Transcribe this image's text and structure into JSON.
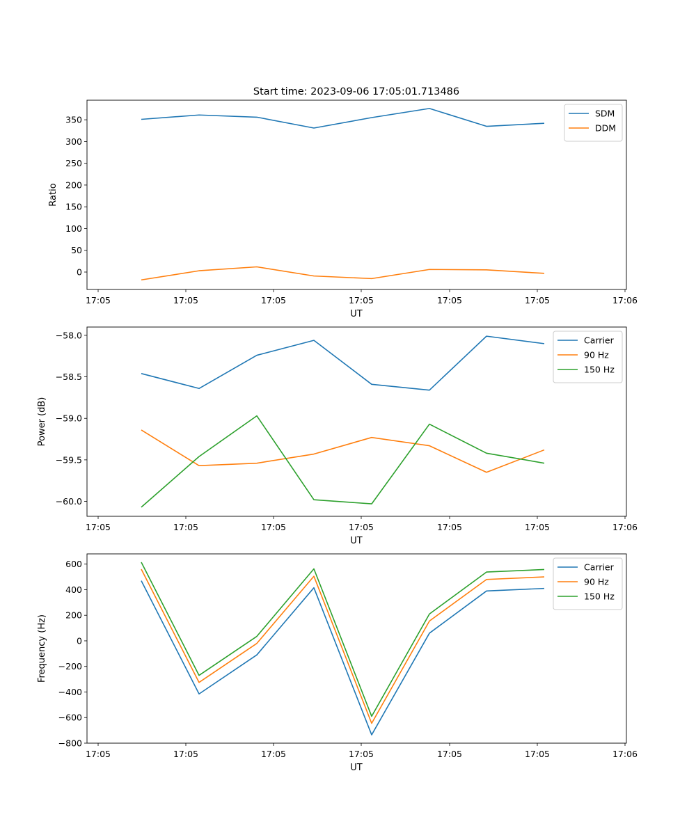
{
  "figure": {
    "title": "Start time: 2023-09-06 17:05:01.713486"
  },
  "colors": {
    "blue": "#1f77b4",
    "orange": "#ff7f0e",
    "green": "#2ca02c"
  },
  "chart_data": [
    {
      "type": "line",
      "xlabel": "UT",
      "ylabel": "Ratio",
      "x_tick_labels": [
        "17:05",
        "17:05",
        "17:05",
        "17:05",
        "17:05",
        "17:05",
        "17:06"
      ],
      "x": [
        1,
        2,
        3,
        4,
        5,
        6,
        7,
        8
      ],
      "xlim": [
        0.8,
        10
      ],
      "ylim": [
        -40,
        395
      ],
      "yticks": [
        0,
        50,
        100,
        150,
        200,
        250,
        300,
        350
      ],
      "legend_position": "top-right",
      "series": [
        {
          "name": "SDM",
          "color": "#1f77b4",
          "values": [
            351,
            361,
            356,
            331,
            355,
            376,
            335,
            342
          ]
        },
        {
          "name": "DDM",
          "color": "#ff7f0e",
          "values": [
            -18,
            3,
            12,
            -9,
            -15,
            6,
            5,
            -3
          ]
        }
      ]
    },
    {
      "type": "line",
      "xlabel": "UT",
      "ylabel": "Power (dB)",
      "x_tick_labels": [
        "17:05",
        "17:05",
        "17:05",
        "17:05",
        "17:05",
        "17:05",
        "17:06"
      ],
      "x": [
        1,
        2,
        3,
        4,
        5,
        6,
        7,
        8
      ],
      "xlim": [
        0.8,
        10
      ],
      "ylim": [
        -60.18,
        -57.9
      ],
      "yticks": [
        -60.0,
        -59.5,
        -59.0,
        -58.5,
        -58.0
      ],
      "ytick_labels": [
        "−60.0",
        "−59.5",
        "−59.0",
        "−58.5",
        "−58.0"
      ],
      "legend_position": "top-right",
      "series": [
        {
          "name": "Carrier",
          "color": "#1f77b4",
          "values": [
            -58.46,
            -58.64,
            -58.24,
            -58.06,
            -58.59,
            -58.66,
            -58.01,
            -58.1
          ]
        },
        {
          "name": "90 Hz",
          "color": "#ff7f0e",
          "values": [
            -59.14,
            -59.57,
            -59.54,
            -59.43,
            -59.23,
            -59.33,
            -59.65,
            -59.38
          ]
        },
        {
          "name": "150 Hz",
          "color": "#2ca02c",
          "values": [
            -60.07,
            -59.46,
            -58.97,
            -59.98,
            -60.03,
            -59.07,
            -59.42,
            -59.54
          ]
        }
      ]
    },
    {
      "type": "line",
      "xlabel": "UT",
      "ylabel": "Frequency (Hz)",
      "x_tick_labels": [
        "17:05",
        "17:05",
        "17:05",
        "17:05",
        "17:05",
        "17:05",
        "17:06"
      ],
      "x": [
        1,
        2,
        3,
        4,
        5,
        6,
        7,
        8
      ],
      "xlim": [
        0.8,
        10
      ],
      "ylim": [
        -800,
        680
      ],
      "yticks": [
        -800,
        -600,
        -400,
        -200,
        0,
        200,
        400,
        600
      ],
      "ytick_labels": [
        "−800",
        "−600",
        "−400",
        "−200",
        "0",
        "200",
        "400",
        "600"
      ],
      "legend_position": "top-right",
      "series": [
        {
          "name": "Carrier",
          "color": "#1f77b4",
          "values": [
            470,
            -415,
            -110,
            415,
            -735,
            60,
            390,
            410
          ]
        },
        {
          "name": "90 Hz",
          "color": "#ff7f0e",
          "values": [
            560,
            -325,
            -20,
            505,
            -645,
            155,
            480,
            500
          ]
        },
        {
          "name": "150 Hz",
          "color": "#2ca02c",
          "values": [
            615,
            -270,
            35,
            563,
            -590,
            210,
            538,
            558
          ]
        }
      ]
    }
  ]
}
